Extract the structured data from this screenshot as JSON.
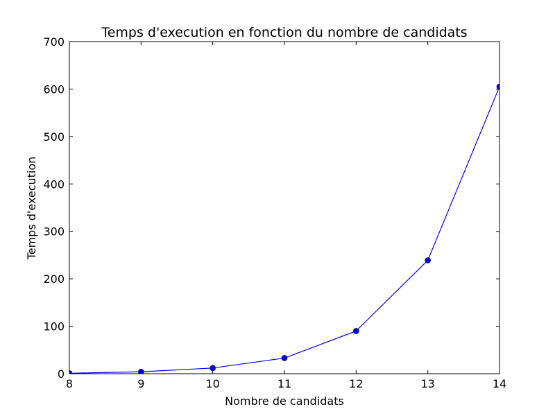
{
  "chart_data": {
    "type": "line",
    "title": "Temps d'execution en fonction du nombre de candidats",
    "xlabel": "Nombre de candidats",
    "ylabel": "Temps d'execution",
    "xlim": [
      8,
      14
    ],
    "ylim": [
      0,
      700
    ],
    "xticks": [
      "8",
      "9",
      "10",
      "11",
      "12",
      "13",
      "14"
    ],
    "yticks": [
      "0",
      "100",
      "200",
      "300",
      "400",
      "500",
      "600",
      "700"
    ],
    "grid": false,
    "legend": "none",
    "series": [
      {
        "color": "#0000ff",
        "marker": "circle",
        "x": [
          8,
          9,
          10,
          11,
          12,
          13,
          14
        ],
        "y": [
          1,
          4,
          12,
          33,
          90,
          239,
          605
        ]
      }
    ]
  }
}
